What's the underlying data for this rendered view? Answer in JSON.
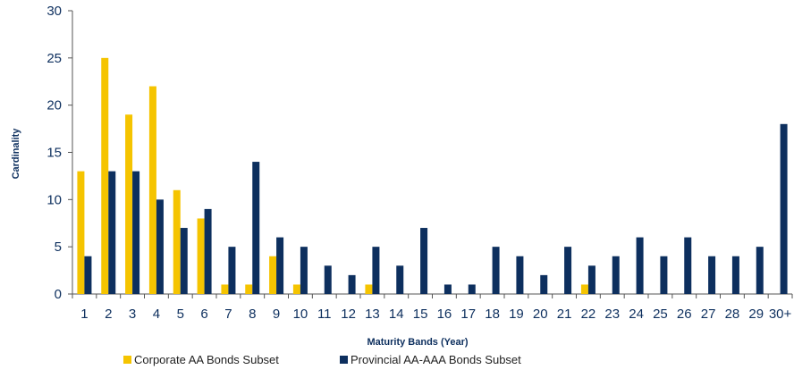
{
  "chart_data": {
    "type": "bar",
    "title": "",
    "xlabel": "Maturity Bands (Year)",
    "ylabel": "Cardinality",
    "ylim": [
      0,
      30
    ],
    "yticks": [
      0,
      5,
      10,
      15,
      20,
      25,
      30
    ],
    "grid": false,
    "legend_position": "bottom",
    "categories": [
      "1",
      "2",
      "3",
      "4",
      "5",
      "6",
      "7",
      "8",
      "9",
      "10",
      "11",
      "12",
      "13",
      "14",
      "15",
      "16",
      "17",
      "18",
      "19",
      "20",
      "21",
      "22",
      "23",
      "24",
      "25",
      "26",
      "27",
      "28",
      "29",
      "30+"
    ],
    "series": [
      {
        "name": "Corporate AA Bonds Subset",
        "color": "#f5c400",
        "values": [
          13,
          25,
          19,
          22,
          11,
          8,
          1,
          1,
          4,
          1,
          0,
          0,
          1,
          0,
          0,
          0,
          0,
          0,
          0,
          0,
          0,
          1,
          0,
          0,
          0,
          0,
          0,
          0,
          0,
          0
        ]
      },
      {
        "name": "Provincial AA-AAA Bonds Subset",
        "color": "#0d2f5e",
        "values": [
          4,
          13,
          13,
          10,
          7,
          9,
          5,
          14,
          6,
          5,
          3,
          2,
          5,
          3,
          7,
          1,
          1,
          5,
          4,
          2,
          5,
          3,
          4,
          6,
          4,
          6,
          4,
          4,
          5,
          18
        ]
      }
    ]
  }
}
